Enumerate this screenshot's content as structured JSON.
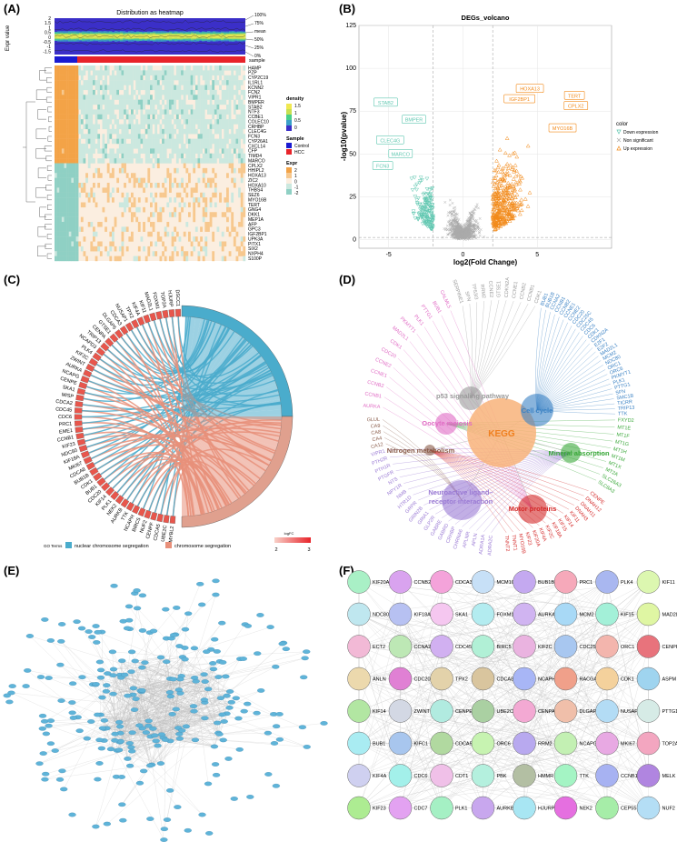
{
  "panels": {
    "a": "(A)",
    "b": "(B)",
    "c": "(C)",
    "d": "(D)",
    "e": "(E)",
    "f": "(F)"
  },
  "chart_data": [
    {
      "panel": "A",
      "type": "heatmap",
      "title": "Distribution as heatmap",
      "ylabel": "Expr value",
      "top_ticks": [
        "2",
        "1.5",
        "1",
        "0.5",
        "0",
        "-0.5",
        "-1",
        "-1.5"
      ],
      "quantile_labels": [
        "100%",
        "75%",
        "mean",
        "50%",
        "25%",
        "0%"
      ],
      "sample_label": "sample",
      "genes": [
        "HAMP",
        "PZP",
        "CYP2C19",
        "IL1RL1",
        "KCNN2",
        "FCN2",
        "VIPR1",
        "BMPER",
        "STAB2",
        "NTF3",
        "CCBE1",
        "COLEC10",
        "CRHBP",
        "CLEC4G",
        "FCN3",
        "CYP26A1",
        "CXCL14",
        "CFP",
        "TIMD4",
        "MARCO",
        "CPLX2",
        "HHIPL2",
        "HOXA13",
        "ZIC2",
        "HOXA10",
        "THBS4",
        "SEZ6",
        "MYO16B",
        "TERT",
        "GNG4",
        "DKK1",
        "MEP1A",
        "AFP",
        "GPC3",
        "IGF2BP1",
        "UPK3A",
        "PITX1",
        "SIX2",
        "NXPH4",
        "S100P"
      ],
      "legends": {
        "density": {
          "title": "density",
          "ticks": [
            "1.5",
            "1",
            "0.5",
            "0"
          ]
        },
        "sample": {
          "title": "Sample",
          "items": [
            {
              "name": "Control",
              "color": "#1a1ad0"
            },
            {
              "name": "HCC",
              "color": "#e8242a"
            }
          ]
        },
        "expr": {
          "title": "Expr",
          "ticks": [
            "2",
            "1",
            "0",
            "-1",
            "-2"
          ]
        }
      }
    },
    {
      "panel": "B",
      "type": "scatter",
      "title": "DEGs_volcano",
      "xlabel": "log2(Fold Change)",
      "ylabel": "-log10(pvalue)",
      "xlim": [
        -7,
        10
      ],
      "ylim": [
        -5,
        125
      ],
      "xticks": [
        -5,
        0,
        5
      ],
      "yticks": [
        0,
        25,
        50,
        75,
        100,
        125
      ],
      "legend": {
        "title": "color",
        "items": [
          "Down expression",
          "Non significant",
          "Up expression"
        ]
      },
      "colors": {
        "down": "#5fc7b0",
        "ns": "#aaaaaa",
        "up": "#f28a1a"
      },
      "labeled_up": [
        {
          "name": "HOXA13",
          "x": 4.5,
          "y": 88
        },
        {
          "name": "TERT",
          "x": 7.5,
          "y": 84
        },
        {
          "name": "IGF2BP1",
          "x": 3.8,
          "y": 82
        },
        {
          "name": "CPLX2",
          "x": 7.6,
          "y": 78
        },
        {
          "name": "MYO16B",
          "x": 6.7,
          "y": 65
        }
      ],
      "labeled_down": [
        {
          "name": "STAB2",
          "x": -5.2,
          "y": 80
        },
        {
          "name": "BMPER",
          "x": -3.3,
          "y": 70
        },
        {
          "name": "CLEC4G",
          "x": -4.9,
          "y": 58
        },
        {
          "name": "MARCO",
          "x": -4.2,
          "y": 50
        },
        {
          "name": "FCN3",
          "x": -5.4,
          "y": 43
        }
      ]
    },
    {
      "panel": "C",
      "type": "chord",
      "genes": [
        "MYBL2",
        "UBE2C",
        "CDCA5",
        "CENPF",
        "NUF2",
        "BIRC5",
        "NCAPH",
        "TTK",
        "AURKB",
        "NEK2",
        "PLK1",
        "KIF14",
        "CDC20",
        "BUB1",
        "CDK1",
        "BUB1B",
        "CDCA8",
        "MKI67",
        "KIF18A",
        "NDC80",
        "KIF23",
        "CCNB1",
        "EME1",
        "PRC1",
        "CDC6",
        "CDC45",
        "CDCA2",
        "MISP",
        "SKA1",
        "CENPE",
        "NCAPG",
        "AURKA",
        "ZWINT",
        "KIF2C",
        "PLK4",
        "NCAPD3",
        "TRIP13",
        "CENPA",
        "GTSE1",
        "DLGAP5",
        "CDCA3",
        "NUSAP1",
        "TPX2",
        "KIF4A",
        "KIF11",
        "MAD2L1",
        "FOXM1",
        "TOP2A",
        "HJURP",
        "DSCC1"
      ],
      "terms_label": "GO Terms",
      "terms": [
        {
          "name": "nuclear chromosome segregation",
          "color": "#4aaccc"
        },
        {
          "name": "chromosome segregation",
          "color": "#e8907a"
        }
      ],
      "logfc_title": "logFC",
      "logfc_ticks": [
        "2",
        "3"
      ]
    },
    {
      "panel": "D",
      "type": "network",
      "center": "KEGG",
      "pathways": [
        {
          "name": "p53 signaling pathway",
          "color": "#9a9a9a"
        },
        {
          "name": "Cell cycle",
          "color": "#3b82c4"
        },
        {
          "name": "Oocyte meiosis",
          "color": "#e06bc4"
        },
        {
          "name": "Nitrogen metabolism",
          "color": "#8a5c4a"
        },
        {
          "name": "Mineral absorption",
          "color": "#3aa83a"
        },
        {
          "name": "Neuroactive ligand-receptor interaction",
          "color": "#9a7ad4"
        },
        {
          "name": "Motor proteins",
          "color": "#d42a2a"
        }
      ],
      "gene_groups": [
        {
          "color": "#9a9a9a",
          "genes": [
            "SERPINE1",
            "SFN",
            "TP53I3",
            "RRM2",
            "CCNE2",
            "GTSE1",
            "CDKN2A",
            "CCNE1",
            "CCNB2",
            "CCNB1",
            "CDK1"
          ]
        },
        {
          "color": "#3b82c4",
          "genes": [
            "BUB1",
            "BUB1B",
            "CCNA2",
            "CCNB1",
            "CCNB2",
            "CCNE1",
            "CCNE2",
            "CDC20",
            "CDC25C",
            "CDC45",
            "CDC6",
            "CDK1",
            "CDKN2A",
            "E2F1",
            "E2F2",
            "MAD2L1",
            "MCM2",
            "NDC80",
            "ORC1",
            "ORC6",
            "PKMYT1",
            "PLK1",
            "PTTG1",
            "SFN",
            "SMC1B",
            "TICRR",
            "TRIP13",
            "TTK"
          ]
        },
        {
          "color": "#3aa83a",
          "genes": [
            "FXYD2",
            "MT1E",
            "MT1F",
            "MT1G",
            "MT1H",
            "MT1M",
            "MT1X",
            "MT2A",
            "SLC26A3",
            "SLC8A3"
          ]
        },
        {
          "color": "#d42a2a",
          "genes": [
            "CENPE",
            "DNAH12",
            "DNAH11",
            "DNAH3",
            "KIF11",
            "KIF14",
            "KIF15",
            "KIF18A",
            "KIF2C",
            "KIF4A",
            "KIF20A",
            "KIF23",
            "MYO16B",
            "TNNT1",
            "TNNT2"
          ]
        },
        {
          "color": "#9a7ad4",
          "genes": [
            "ADRA2C",
            "ADRA1A",
            "APLN",
            "APLNR",
            "CHRNA6",
            "CRHBP",
            "GABRD",
            "GABRE",
            "GLP2R",
            "GRIA1",
            "GRIN2B",
            "GRPR",
            "HTR1D",
            "NMB",
            "NPY1R",
            "NTS",
            "PTGFR",
            "PTH1R",
            "PTH2R",
            "VIPR1"
          ]
        },
        {
          "color": "#8a5c4a",
          "genes": [
            "CA12",
            "CA4",
            "CA8",
            "CA9",
            "GLUL"
          ]
        },
        {
          "color": "#e06bc4",
          "genes": [
            "AURKA",
            "CCNB1",
            "CCNB2",
            "CCNE1",
            "CCNE2",
            "CDC20",
            "CDK1",
            "MAD2L1",
            "PKMYT1",
            "PLK1",
            "PTTG1",
            "BUB1",
            "CALML5"
          ]
        }
      ]
    },
    {
      "panel": "F",
      "type": "network",
      "hub_genes": [
        [
          "KIF20A",
          "CCNB2",
          "CDCA3",
          "MCM10",
          "BUB1B",
          "PRC1",
          "PLK4",
          "KIF11"
        ],
        [
          "NDC80",
          "KIF18A",
          "SKA1",
          "FOXM1",
          "AURKA",
          "MCM2",
          "KIF15",
          "MAD2L1"
        ],
        [
          "ECT2",
          "CCNA2",
          "CDC45",
          "BIRC5",
          "KIF2C",
          "CDC25C",
          "ORC1",
          "CENPF"
        ],
        [
          "ANLN",
          "CDC20",
          "TPX2",
          "CDCA8",
          "NCAPH",
          "RACGAP1",
          "CDK1",
          "ASPM"
        ],
        [
          "KIF14",
          "ZWINT",
          "CENPE",
          "UBE2C",
          "CENPA",
          "DLGAP5",
          "NUSAP1",
          "PTTG1"
        ],
        [
          "BUB1",
          "KIFC1",
          "CDCA5",
          "ORC6",
          "RRM2",
          "NCAPG",
          "MKI67",
          "TOP2A"
        ],
        [
          "KIF4A",
          "CDC6",
          "CDT1",
          "PBK",
          "HMMR",
          "TTK",
          "CCNB1",
          "MELK"
        ],
        [
          "KIF23",
          "CDC7",
          "PLK1",
          "AURKB",
          "HJURP",
          "NEK2",
          "CEP55",
          "NUF2"
        ]
      ],
      "node_colors": [
        [
          "#a9f0c6",
          "#d9a3ef",
          "#f4a3da",
          "#c7e0f7",
          "#c4a9f0",
          "#f6a9ba",
          "#a9b7f0",
          "#dcf7b0"
        ],
        [
          "#bfe7ef",
          "#b7c1f2",
          "#f5c7f0",
          "#b3ecf0",
          "#d0b4f1",
          "#a8d9f6",
          "#a3f0d8",
          "#dff6a3"
        ],
        [
          "#f2b9d6",
          "#bde8b5",
          "#d1b0f1",
          "#b1f0d6",
          "#eab3e0",
          "#a8c7f0",
          "#f3b5ad",
          "#e8737c"
        ],
        [
          "#ecd9ad",
          "#e080d4",
          "#e3d2aa",
          "#d9c59e",
          "#a8b6f6",
          "#f0a08a",
          "#f4d19c",
          "#9fd4ef"
        ],
        [
          "#b2e6a2",
          "#d3d8e4",
          "#b1ebe0",
          "#aad0a2",
          "#f3a9d3",
          "#f0bfaa",
          "#b3dcf5",
          "#d6ebe6"
        ],
        [
          "#a9ecf2",
          "#a8c6ee",
          "#b1d9a0",
          "#c7f3b1",
          "#b8a9ef",
          "#c3f0b3",
          "#e8a9e3",
          "#f3a6c0"
        ],
        [
          "#cfd0f0",
          "#a3f0ea",
          "#f0c0e8",
          "#b4f0de",
          "#b3bfa3",
          "#a4f4c4",
          "#a7b2f2",
          "#b085e0"
        ],
        [
          "#adec92",
          "#e3a2f1",
          "#a5f0c4",
          "#c8a7ee",
          "#a8e6f3",
          "#e56fe0",
          "#a6eda8",
          "#b4def5"
        ]
      ]
    }
  ]
}
